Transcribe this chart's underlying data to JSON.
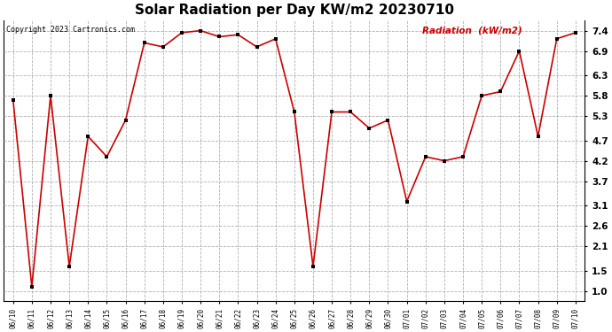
{
  "title": "Solar Radiation per Day KW/m2 20230710",
  "copyright": "Copyright 2023 Cartronics.com",
  "legend_label": "Radiation  (kW/m2)",
  "x_labels": [
    "06/10",
    "06/11",
    "06/12",
    "06/13",
    "06/14",
    "06/15",
    "06/16",
    "06/17",
    "06/18",
    "06/19",
    "06/20",
    "06/21",
    "06/22",
    "06/23",
    "06/24",
    "06/25",
    "06/26",
    "06/27",
    "06/28",
    "06/29",
    "06/30",
    "07/01",
    "07/02",
    "07/03",
    "07/04",
    "07/05",
    "07/06",
    "07/07",
    "07/08",
    "07/09",
    "07/10"
  ],
  "values": [
    5.7,
    1.1,
    5.8,
    1.6,
    4.8,
    4.3,
    5.2,
    7.1,
    7.0,
    7.35,
    7.4,
    7.25,
    7.3,
    7.0,
    7.2,
    5.4,
    1.6,
    5.4,
    5.4,
    5.0,
    5.2,
    3.2,
    4.3,
    4.2,
    4.3,
    5.8,
    5.9,
    6.9,
    4.8,
    7.2,
    7.35
  ],
  "line_color": "#cc0000",
  "marker_color": "#000000",
  "background_color": "#ffffff",
  "grid_color": "#b0b0b0",
  "title_fontsize": 11,
  "yticks": [
    1.0,
    1.5,
    2.1,
    2.6,
    3.1,
    3.7,
    4.2,
    4.7,
    5.3,
    5.8,
    6.3,
    6.9,
    7.4
  ],
  "ylim": [
    0.75,
    7.65
  ],
  "copyright_color": "#000000",
  "legend_color": "#cc0000"
}
